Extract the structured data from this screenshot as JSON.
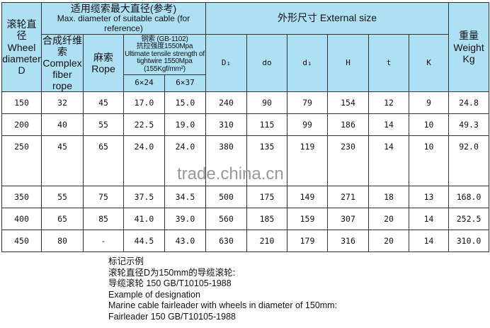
{
  "header": {
    "wheel_cn": "滚轮直径",
    "wheel_en": "Wheel diameter D",
    "cable_cn": "适用缆索最大直径(参考)",
    "cable_en": "Max. diameter of suitable cable (for reference)",
    "fiber_cn": "合成纤维索",
    "fiber_en": "Complex fiber rope",
    "rope_cn": "麻索",
    "rope_en": "Rope",
    "steel_cn1": "钢索 (GB-1102)",
    "steel_cn2": "抗拉强度1550Mpa",
    "steel_en": "Ultimate tensile strength of tightwire 1550Mpa",
    "steel_unit": "(155Kgf/mm²)",
    "steel_a": "6×24",
    "steel_b": "6×37",
    "ext_title": "外形尺寸  External size",
    "cols": [
      "D₁",
      "do",
      "d₁",
      "H",
      "t",
      "K"
    ],
    "weight_cn": "重量",
    "weight_en": "Weight Kg"
  },
  "rows": [
    [
      "150",
      "32",
      "45",
      "17.0",
      "15.0",
      "240",
      "90",
      "79",
      "154",
      "12",
      "9",
      "24.8"
    ],
    [
      "200",
      "40",
      "55",
      "22.5",
      "19.0",
      "310",
      "115",
      "99",
      "186",
      "14",
      "10",
      "49.3"
    ],
    [
      "250",
      "45",
      "65",
      "24.0",
      "24.0",
      "380",
      "135",
      "119",
      "230",
      "14",
      "10",
      "92.0"
    ],
    [
      "350",
      "55",
      "75",
      "37.5",
      "34.5",
      "500",
      "175",
      "149",
      "271",
      "18",
      "13",
      "168.0"
    ],
    [
      "400",
      "65",
      "85",
      "41.0",
      "39.0",
      "560",
      "185",
      "159",
      "307",
      "20",
      "14",
      "252.5"
    ],
    [
      "450",
      "80",
      "-",
      "44.5",
      "43.0",
      "630",
      "210",
      "179",
      "316",
      "20",
      "14",
      "310.0"
    ]
  ],
  "watermark": "trade.china.cn",
  "notes": [
    "标记示例",
    "滚轮直径D为150mm的导缆滚轮:",
    "导缆滚轮 150 GB/T10105-1988",
    "Example of designation",
    "Marine cable fairleader with wheels in diameter of 150mm:",
    "Fairleader 150 GB/T10105-1988"
  ]
}
